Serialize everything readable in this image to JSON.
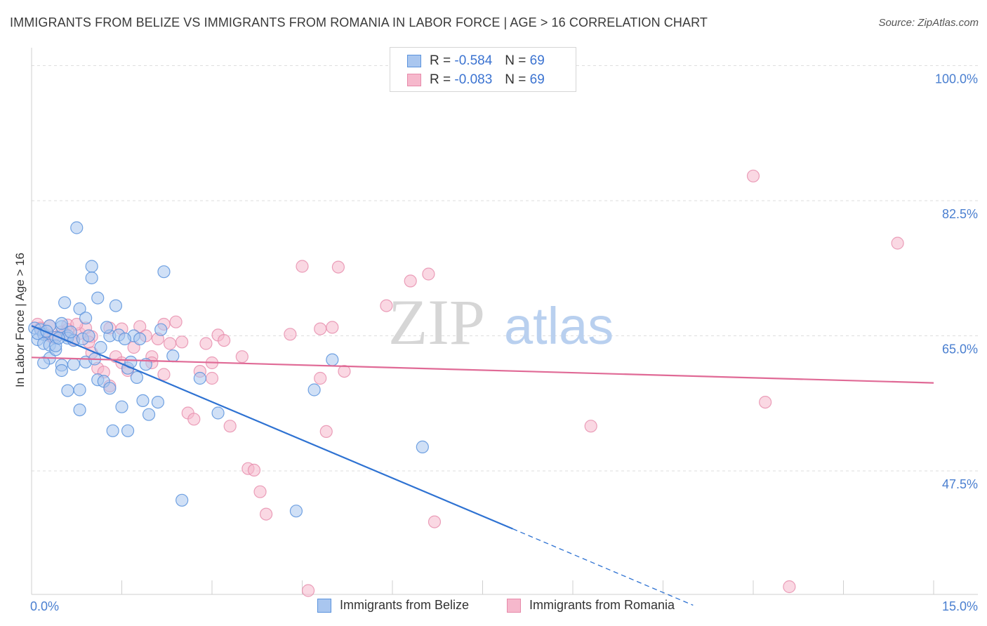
{
  "title": "IMMIGRANTS FROM BELIZE VS IMMIGRANTS FROM ROMANIA IN LABOR FORCE | AGE > 16 CORRELATION CHART",
  "source": "Source: ZipAtlas.com",
  "watermark": {
    "zip": "ZIP",
    "atlas": "atlas"
  },
  "legend_top": {
    "r_label": "R =",
    "n_label": "N =",
    "belize": {
      "r": "-0.584",
      "n": "69"
    },
    "romania": {
      "r": "-0.083",
      "n": "69"
    }
  },
  "legend_bottom": {
    "belize": "Immigrants from Belize",
    "romania": "Immigrants from Romania"
  },
  "colors": {
    "belize_fill": "#a9c6ef",
    "belize_stroke": "#5b93dd",
    "belize_line": "#2e72d2",
    "romania_fill": "#f6b8cc",
    "romania_stroke": "#e68aaa",
    "romania_line": "#e06a96",
    "axis_label": "#4a7fd0",
    "grid": "#dedede"
  },
  "chart_data": {
    "type": "scatter",
    "title": "IMMIGRANTS FROM BELIZE VS IMMIGRANTS FROM ROMANIA IN LABOR FORCE | AGE > 16 CORRELATION CHART",
    "xlabel": "",
    "ylabel": "In Labor Force | Age > 16",
    "xlim": [
      0,
      15
    ],
    "ylim": [
      31.5,
      101.5
    ],
    "x_tick_labels": [
      "0.0%",
      "15.0%"
    ],
    "y_ticks": [
      47.5,
      65.0,
      82.5,
      100.0
    ],
    "y_tick_labels": [
      "47.5%",
      "65.0%",
      "82.5%",
      "100.0%"
    ],
    "series": [
      {
        "name": "Immigrants from Belize",
        "x": [
          0.05,
          0.1,
          0.15,
          0.2,
          0.2,
          0.3,
          0.3,
          0.4,
          0.4,
          0.5,
          0.5,
          0.5,
          0.6,
          0.6,
          0.6,
          0.7,
          0.7,
          0.8,
          0.8,
          0.8,
          0.9,
          0.9,
          1.0,
          1.0,
          1.1,
          1.1,
          1.2,
          1.3,
          1.3,
          1.4,
          1.5,
          1.6,
          1.6,
          1.7,
          1.8,
          1.9,
          2.1,
          2.2,
          2.5,
          2.8,
          3.1,
          4.4,
          4.7,
          5.0,
          6.5,
          0.1,
          0.2,
          0.3,
          0.4,
          0.5,
          0.55,
          0.65,
          0.75,
          0.85,
          0.95,
          1.05,
          1.15,
          1.25,
          1.35,
          1.45,
          1.55,
          1.65,
          1.75,
          1.85,
          1.95,
          2.15,
          2.35,
          0.25,
          0.45
        ],
        "y": [
          66.0,
          64.5,
          65.8,
          65.2,
          64.0,
          63.8,
          62.1,
          64.8,
          63.2,
          66.2,
          61.2,
          60.5,
          65.0,
          64.7,
          57.9,
          64.4,
          61.3,
          58.0,
          55.4,
          68.5,
          61.6,
          67.3,
          74.0,
          72.5,
          59.3,
          69.9,
          59.1,
          65.0,
          58.2,
          68.9,
          55.8,
          52.7,
          60.8,
          65.0,
          64.6,
          61.3,
          56.4,
          73.3,
          43.7,
          59.5,
          55.0,
          42.3,
          58.0,
          61.9,
          50.6,
          65.3,
          61.5,
          66.3,
          63.7,
          66.6,
          69.3,
          65.5,
          79.0,
          64.6,
          65.0,
          62.0,
          63.5,
          66.1,
          52.7,
          65.1,
          64.6,
          61.6,
          59.6,
          56.6,
          54.8,
          65.8,
          62.4,
          65.6,
          64.7
        ],
        "trend": {
          "x": [
            0,
            8.0
          ],
          "y": [
            66.3,
            40.0
          ],
          "dashed_to": {
            "x": 11.0,
            "y": 30.1
          }
        }
      },
      {
        "name": "Immigrants from Romania",
        "x": [
          0.1,
          0.2,
          0.3,
          0.3,
          0.4,
          0.5,
          0.6,
          0.6,
          0.7,
          0.8,
          0.9,
          1.0,
          1.0,
          1.1,
          1.2,
          1.3,
          1.3,
          1.4,
          1.5,
          1.5,
          1.6,
          1.7,
          1.8,
          1.9,
          2.0,
          2.0,
          2.1,
          2.2,
          2.2,
          2.3,
          2.4,
          2.5,
          2.6,
          2.7,
          2.8,
          2.9,
          3.0,
          3.0,
          3.1,
          3.2,
          3.3,
          3.5,
          3.6,
          3.7,
          3.8,
          3.9,
          4.3,
          4.5,
          4.6,
          4.8,
          4.8,
          4.9,
          5.0,
          5.1,
          5.2,
          5.9,
          6.3,
          6.6,
          6.7,
          9.3,
          12.0,
          12.2,
          12.6,
          14.4,
          0.15,
          0.35,
          0.55,
          0.75,
          0.95
        ],
        "y": [
          66.5,
          65.5,
          66.3,
          65.0,
          64.8,
          65.5,
          66.4,
          65.8,
          64.5,
          65.3,
          66.0,
          62.8,
          64.9,
          60.8,
          60.3,
          66.0,
          58.5,
          62.3,
          61.5,
          65.9,
          60.5,
          63.5,
          66.2,
          65.0,
          62.3,
          61.5,
          64.6,
          66.5,
          60.0,
          64.0,
          66.8,
          64.2,
          55.0,
          54.2,
          60.4,
          64.0,
          59.5,
          61.5,
          65.1,
          64.4,
          53.3,
          62.3,
          47.8,
          47.6,
          44.8,
          41.9,
          65.2,
          74.0,
          32.0,
          59.5,
          65.9,
          52.6,
          66.1,
          73.9,
          60.4,
          68.9,
          72.1,
          73.0,
          40.9,
          53.3,
          85.7,
          56.4,
          32.5,
          77.0,
          66.0,
          64.8,
          65.3,
          66.5,
          64.2
        ],
        "trend": {
          "x": [
            0,
            15.0
          ],
          "y": [
            62.2,
            58.9
          ]
        }
      }
    ]
  }
}
